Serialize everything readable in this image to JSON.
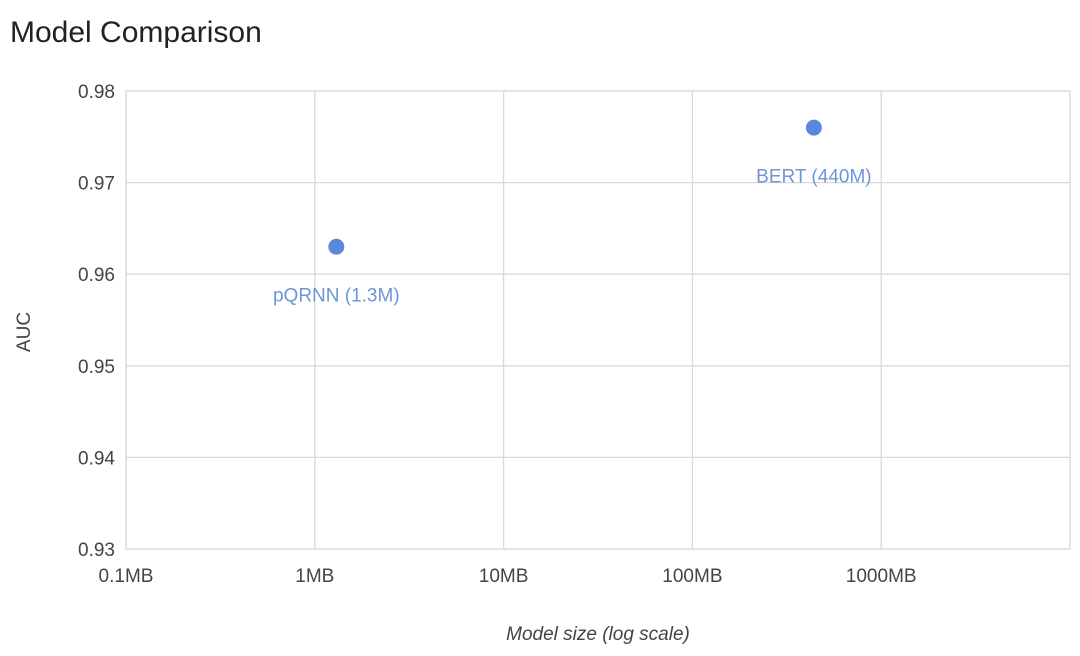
{
  "chart_data": {
    "type": "scatter",
    "title": "Model Comparison",
    "xlabel": "Model size (log scale)",
    "ylabel": "AUC",
    "x_scale": "log",
    "x_unit": "MB",
    "xlim": [
      0.1,
      10000
    ],
    "ylim": [
      0.93,
      0.98
    ],
    "x_ticks": [
      {
        "value": 0.1,
        "label": "0.1MB"
      },
      {
        "value": 1,
        "label": "1MB"
      },
      {
        "value": 10,
        "label": "10MB"
      },
      {
        "value": 100,
        "label": "100MB"
      },
      {
        "value": 1000,
        "label": "1000MB"
      }
    ],
    "y_ticks": [
      {
        "value": 0.93,
        "label": "0.93"
      },
      {
        "value": 0.94,
        "label": "0.94"
      },
      {
        "value": 0.95,
        "label": "0.95"
      },
      {
        "value": 0.96,
        "label": "0.96"
      },
      {
        "value": 0.97,
        "label": "0.97"
      },
      {
        "value": 0.98,
        "label": "0.98"
      }
    ],
    "grid": true,
    "legend": "none",
    "series": [
      {
        "color": "#5b87dd",
        "points": [
          {
            "x": 1.3,
            "y": 0.963,
            "label": "pQRNN (1.3M)"
          },
          {
            "x": 440,
            "y": 0.976,
            "label": "BERT (440M)"
          }
        ]
      }
    ]
  },
  "colors": {
    "point": "#5b87dd",
    "point_label": "#6f95d8",
    "grid": "#d9d9d9",
    "axis_text": "#444444",
    "title_text": "#222222"
  }
}
